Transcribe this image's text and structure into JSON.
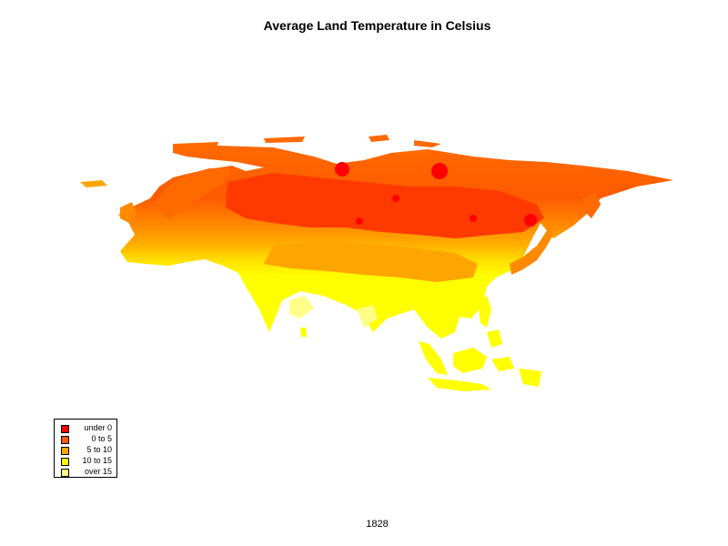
{
  "title": "Average Land Temperature in Celsius",
  "year_label": "1828",
  "legend": [
    {
      "label": "under 0",
      "color": "#ff0000"
    },
    {
      "label": "0 to 5",
      "color": "#ff5a00"
    },
    {
      "label": "5 to 10",
      "color": "#ffa500"
    },
    {
      "label": "10 to 15",
      "color": "#ffff00"
    },
    {
      "label": "over 15",
      "color": "#ffff88"
    }
  ],
  "map": {
    "region": "Eurasia",
    "palette": {
      "red": "#ff0000",
      "red_orange": "#ff3a00",
      "orange": "#ff6a00",
      "amber": "#ffa000",
      "yellow": "#ffff00",
      "pale_yellow": "#ffff88"
    }
  }
}
